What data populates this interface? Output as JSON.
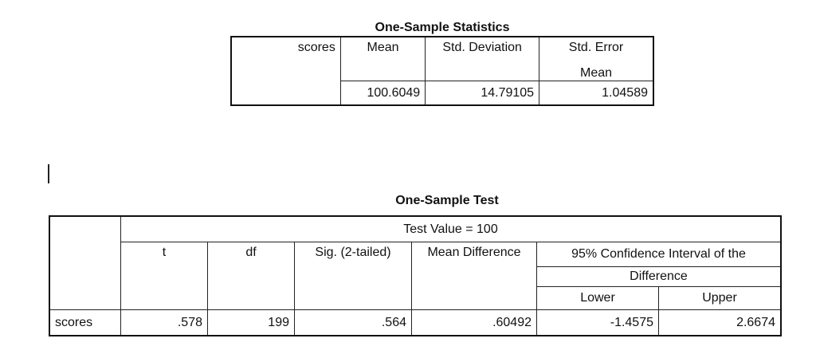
{
  "table1": {
    "title": "One-Sample Statistics",
    "row_label": "scores",
    "headers": [
      "Mean",
      "Std. Deviation",
      "Std. Error",
      "Mean"
    ],
    "values": [
      "100.6049",
      "14.79105",
      "1.04589"
    ]
  },
  "table2": {
    "title": "One-Sample Test",
    "test_value_label": "Test Value = 100",
    "headers": {
      "t": "t",
      "df": "df",
      "sig": "Sig. (2-tailed)",
      "mean_diff": "Mean Difference",
      "ci_line1": "95% Confidence Interval of the",
      "ci_line2": "Difference",
      "lower": "Lower",
      "upper": "Upper"
    },
    "row_label": "scores",
    "values": {
      "t": ".578",
      "df": "199",
      "sig": ".564",
      "mean_diff": ".60492",
      "lower": "-1.4575",
      "upper": "2.6674"
    }
  }
}
